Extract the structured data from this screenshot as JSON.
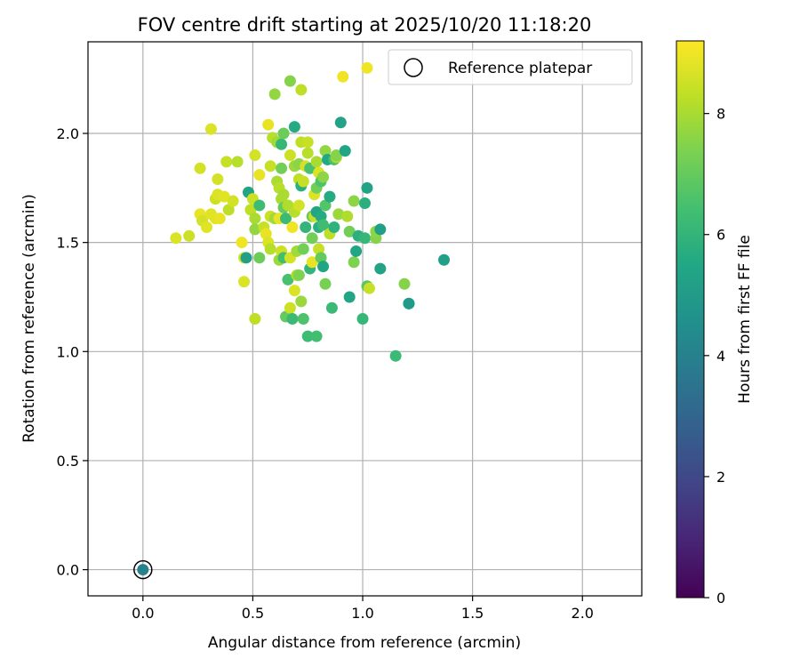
{
  "chart_data": {
    "type": "scatter",
    "title": "FOV centre drift starting at 2025/10/20 11:18:20",
    "xlabel": "Angular distance from reference (arcmin)",
    "ylabel": "Rotation from reference (arcmin)",
    "xlim": [
      -0.25,
      2.27
    ],
    "ylim": [
      -0.12,
      2.42
    ],
    "xticks": [
      0.0,
      0.5,
      1.0,
      1.5,
      2.0
    ],
    "xtick_labels": [
      "0.0",
      "0.5",
      "1.0",
      "1.5",
      "2.0"
    ],
    "yticks": [
      0.0,
      0.5,
      1.0,
      1.5,
      2.0
    ],
    "ytick_labels": [
      "0.0",
      "0.5",
      "1.0",
      "1.5",
      "2.0"
    ],
    "grid": true,
    "legend": {
      "position": "top-right",
      "label": "Reference platepar"
    },
    "colorbar": {
      "label": "Hours from first FF file",
      "min": 0,
      "max": 9.2,
      "ticks": [
        0,
        2,
        4,
        6,
        8
      ],
      "tick_labels": [
        "0",
        "2",
        "4",
        "6",
        "8"
      ],
      "colormap": "viridis"
    },
    "reference_point": {
      "x": 0.0,
      "y": 0.0,
      "hours": 4.1
    },
    "points": [
      {
        "x": 0.15,
        "y": 1.52,
        "h": 8.7
      },
      {
        "x": 0.21,
        "y": 1.53,
        "h": 8.5
      },
      {
        "x": 0.26,
        "y": 1.84,
        "h": 8.6
      },
      {
        "x": 0.26,
        "y": 1.63,
        "h": 8.9
      },
      {
        "x": 0.27,
        "y": 1.6,
        "h": 8.6
      },
      {
        "x": 0.29,
        "y": 1.57,
        "h": 8.8
      },
      {
        "x": 0.31,
        "y": 2.02,
        "h": 8.7
      },
      {
        "x": 0.31,
        "y": 1.63,
        "h": 8.8
      },
      {
        "x": 0.33,
        "y": 1.7,
        "h": 8.5
      },
      {
        "x": 0.33,
        "y": 1.61,
        "h": 8.8
      },
      {
        "x": 0.34,
        "y": 1.72,
        "h": 8.7
      },
      {
        "x": 0.34,
        "y": 1.79,
        "h": 8.6
      },
      {
        "x": 0.35,
        "y": 1.61,
        "h": 8.9
      },
      {
        "x": 0.37,
        "y": 1.71,
        "h": 8.8
      },
      {
        "x": 0.38,
        "y": 1.87,
        "h": 8.4
      },
      {
        "x": 0.39,
        "y": 1.65,
        "h": 8.3
      },
      {
        "x": 0.41,
        "y": 1.69,
        "h": 8.6
      },
      {
        "x": 0.43,
        "y": 1.87,
        "h": 8.2
      },
      {
        "x": 0.45,
        "y": 1.5,
        "h": 9.0
      },
      {
        "x": 0.46,
        "y": 1.43,
        "h": 8.6
      },
      {
        "x": 0.46,
        "y": 1.32,
        "h": 8.7
      },
      {
        "x": 0.47,
        "y": 1.43,
        "h": 5.2
      },
      {
        "x": 0.48,
        "y": 1.73,
        "h": 5.4
      },
      {
        "x": 0.49,
        "y": 1.65,
        "h": 8.3
      },
      {
        "x": 0.5,
        "y": 1.7,
        "h": 8.5
      },
      {
        "x": 0.51,
        "y": 1.9,
        "h": 8.6
      },
      {
        "x": 0.51,
        "y": 1.61,
        "h": 8.0
      },
      {
        "x": 0.51,
        "y": 1.56,
        "h": 7.7
      },
      {
        "x": 0.51,
        "y": 1.15,
        "h": 8.3
      },
      {
        "x": 0.53,
        "y": 1.81,
        "h": 8.9
      },
      {
        "x": 0.53,
        "y": 1.67,
        "h": 6.3
      },
      {
        "x": 0.53,
        "y": 1.43,
        "h": 7.1
      },
      {
        "x": 0.55,
        "y": 1.57,
        "h": 8.4
      },
      {
        "x": 0.56,
        "y": 1.54,
        "h": 8.9
      },
      {
        "x": 0.57,
        "y": 2.04,
        "h": 8.9
      },
      {
        "x": 0.57,
        "y": 1.5,
        "h": 8.7
      },
      {
        "x": 0.58,
        "y": 1.85,
        "h": 8.4
      },
      {
        "x": 0.58,
        "y": 1.62,
        "h": 8.5
      },
      {
        "x": 0.58,
        "y": 1.47,
        "h": 8.2
      },
      {
        "x": 0.59,
        "y": 1.98,
        "h": 8.2
      },
      {
        "x": 0.6,
        "y": 2.18,
        "h": 7.7
      },
      {
        "x": 0.6,
        "y": 1.61,
        "h": 7.9
      },
      {
        "x": 0.61,
        "y": 1.96,
        "h": 7.9
      },
      {
        "x": 0.61,
        "y": 1.78,
        "h": 8.0
      },
      {
        "x": 0.62,
        "y": 1.75,
        "h": 8.2
      },
      {
        "x": 0.62,
        "y": 1.61,
        "h": 8.9
      },
      {
        "x": 0.62,
        "y": 1.42,
        "h": 7.8
      },
      {
        "x": 0.63,
        "y": 1.95,
        "h": 6.1
      },
      {
        "x": 0.63,
        "y": 1.84,
        "h": 7.2
      },
      {
        "x": 0.63,
        "y": 1.7,
        "h": 8.0
      },
      {
        "x": 0.63,
        "y": 1.46,
        "h": 8.5
      },
      {
        "x": 0.64,
        "y": 2.0,
        "h": 7.1
      },
      {
        "x": 0.64,
        "y": 1.72,
        "h": 8.0
      },
      {
        "x": 0.64,
        "y": 1.66,
        "h": 7.0
      },
      {
        "x": 0.64,
        "y": 1.43,
        "h": 6.4
      },
      {
        "x": 0.65,
        "y": 1.61,
        "h": 6.2
      },
      {
        "x": 0.65,
        "y": 1.16,
        "h": 7.0
      },
      {
        "x": 0.66,
        "y": 1.33,
        "h": 6.5
      },
      {
        "x": 0.66,
        "y": 1.67,
        "h": 8.1
      },
      {
        "x": 0.67,
        "y": 2.24,
        "h": 7.5
      },
      {
        "x": 0.67,
        "y": 1.9,
        "h": 8.5
      },
      {
        "x": 0.67,
        "y": 1.43,
        "h": 8.6
      },
      {
        "x": 0.67,
        "y": 1.2,
        "h": 8.5
      },
      {
        "x": 0.68,
        "y": 1.15,
        "h": 6.2
      },
      {
        "x": 0.68,
        "y": 1.57,
        "h": 9.0
      },
      {
        "x": 0.69,
        "y": 2.03,
        "h": 5.6
      },
      {
        "x": 0.69,
        "y": 1.85,
        "h": 7.8
      },
      {
        "x": 0.69,
        "y": 1.64,
        "h": 8.2
      },
      {
        "x": 0.69,
        "y": 1.28,
        "h": 8.7
      },
      {
        "x": 0.7,
        "y": 1.46,
        "h": 7.9
      },
      {
        "x": 0.7,
        "y": 1.35,
        "h": 8.1
      },
      {
        "x": 0.71,
        "y": 1.86,
        "h": 7.6
      },
      {
        "x": 0.71,
        "y": 1.79,
        "h": 8.3
      },
      {
        "x": 0.71,
        "y": 1.67,
        "h": 8.6
      },
      {
        "x": 0.71,
        "y": 1.35,
        "h": 7.4
      },
      {
        "x": 0.72,
        "y": 1.96,
        "h": 8.3
      },
      {
        "x": 0.72,
        "y": 2.2,
        "h": 8.3
      },
      {
        "x": 0.72,
        "y": 1.76,
        "h": 5.8
      },
      {
        "x": 0.72,
        "y": 1.23,
        "h": 7.8
      },
      {
        "x": 0.73,
        "y": 1.78,
        "h": 8.4
      },
      {
        "x": 0.73,
        "y": 1.47,
        "h": 7.2
      },
      {
        "x": 0.73,
        "y": 1.15,
        "h": 6.6
      },
      {
        "x": 0.74,
        "y": 1.85,
        "h": 8.6
      },
      {
        "x": 0.74,
        "y": 1.57,
        "h": 6.0
      },
      {
        "x": 0.75,
        "y": 1.96,
        "h": 8.4
      },
      {
        "x": 0.75,
        "y": 1.91,
        "h": 8.2
      },
      {
        "x": 0.75,
        "y": 1.07,
        "h": 6.3
      },
      {
        "x": 0.76,
        "y": 1.84,
        "h": 6.5
      },
      {
        "x": 0.76,
        "y": 1.38,
        "h": 6.0
      },
      {
        "x": 0.77,
        "y": 1.62,
        "h": 7.0
      },
      {
        "x": 0.77,
        "y": 1.52,
        "h": 7.2
      },
      {
        "x": 0.77,
        "y": 1.41,
        "h": 8.9
      },
      {
        "x": 0.78,
        "y": 1.72,
        "h": 8.7
      },
      {
        "x": 0.78,
        "y": 1.62,
        "h": 8.4
      },
      {
        "x": 0.79,
        "y": 1.87,
        "h": 8.0
      },
      {
        "x": 0.79,
        "y": 1.75,
        "h": 7.2
      },
      {
        "x": 0.79,
        "y": 1.64,
        "h": 5.4
      },
      {
        "x": 0.79,
        "y": 1.07,
        "h": 6.4
      },
      {
        "x": 0.8,
        "y": 1.82,
        "h": 8.7
      },
      {
        "x": 0.8,
        "y": 1.57,
        "h": 5.8
      },
      {
        "x": 0.8,
        "y": 1.47,
        "h": 8.4
      },
      {
        "x": 0.81,
        "y": 1.43,
        "h": 7.0
      },
      {
        "x": 0.81,
        "y": 1.78,
        "h": 6.6
      },
      {
        "x": 0.81,
        "y": 1.62,
        "h": 5.6
      },
      {
        "x": 0.82,
        "y": 1.39,
        "h": 5.4
      },
      {
        "x": 0.82,
        "y": 1.58,
        "h": 6.3
      },
      {
        "x": 0.82,
        "y": 1.8,
        "h": 7.6
      },
      {
        "x": 0.83,
        "y": 1.92,
        "h": 7.7
      },
      {
        "x": 0.83,
        "y": 1.67,
        "h": 6.7
      },
      {
        "x": 0.83,
        "y": 1.31,
        "h": 7.3
      },
      {
        "x": 0.84,
        "y": 1.88,
        "h": 5.5
      },
      {
        "x": 0.85,
        "y": 1.54,
        "h": 8.3
      },
      {
        "x": 0.85,
        "y": 1.71,
        "h": 5.6
      },
      {
        "x": 0.86,
        "y": 1.2,
        "h": 6.2
      },
      {
        "x": 0.87,
        "y": 1.88,
        "h": 6.5
      },
      {
        "x": 0.87,
        "y": 1.57,
        "h": 5.9
      },
      {
        "x": 0.88,
        "y": 1.89,
        "h": 8.0
      },
      {
        "x": 0.88,
        "y": 1.9,
        "h": 7.5
      },
      {
        "x": 0.89,
        "y": 1.63,
        "h": 7.8
      },
      {
        "x": 0.9,
        "y": 2.05,
        "h": 5.3
      },
      {
        "x": 0.91,
        "y": 2.26,
        "h": 9.0
      },
      {
        "x": 0.92,
        "y": 1.92,
        "h": 5.4
      },
      {
        "x": 0.93,
        "y": 1.62,
        "h": 8.1
      },
      {
        "x": 0.94,
        "y": 1.55,
        "h": 7.2
      },
      {
        "x": 0.94,
        "y": 1.25,
        "h": 5.4
      },
      {
        "x": 0.96,
        "y": 1.69,
        "h": 7.6
      },
      {
        "x": 0.96,
        "y": 1.41,
        "h": 7.4
      },
      {
        "x": 0.97,
        "y": 1.46,
        "h": 5.4
      },
      {
        "x": 0.98,
        "y": 1.53,
        "h": 5.8
      },
      {
        "x": 1.0,
        "y": 1.15,
        "h": 6.1
      },
      {
        "x": 1.01,
        "y": 1.68,
        "h": 5.8
      },
      {
        "x": 1.01,
        "y": 1.52,
        "h": 6.1
      },
      {
        "x": 1.02,
        "y": 1.75,
        "h": 5.3
      },
      {
        "x": 1.02,
        "y": 2.3,
        "h": 9.0
      },
      {
        "x": 1.02,
        "y": 1.3,
        "h": 6.8
      },
      {
        "x": 1.03,
        "y": 1.29,
        "h": 8.4
      },
      {
        "x": 1.06,
        "y": 1.52,
        "h": 7.5
      },
      {
        "x": 1.06,
        "y": 1.55,
        "h": 7.6
      },
      {
        "x": 1.08,
        "y": 1.56,
        "h": 5.2
      },
      {
        "x": 1.08,
        "y": 1.38,
        "h": 5.3
      },
      {
        "x": 1.15,
        "y": 0.98,
        "h": 6.2
      },
      {
        "x": 1.19,
        "y": 1.31,
        "h": 7.5
      },
      {
        "x": 1.21,
        "y": 1.22,
        "h": 4.8
      },
      {
        "x": 1.21,
        "y": 1.22,
        "h": 5.0
      },
      {
        "x": 1.37,
        "y": 1.42,
        "h": 5.2
      }
    ]
  }
}
